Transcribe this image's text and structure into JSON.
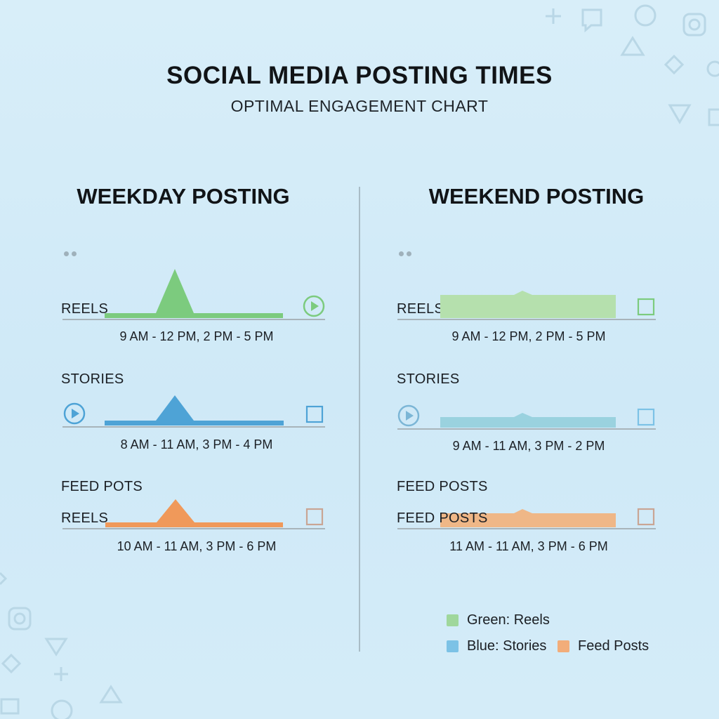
{
  "header": {
    "title": "SOCIAL MEDIA POSTING TIMES",
    "subtitle": "OPTIMAL ENGAGEMENT CHART"
  },
  "colors": {
    "reels": "#7ccb7e",
    "reels_light": "#b5e0ad",
    "stories": "#4ea3d6",
    "stories_light": "#9ad2df",
    "feed": "#f0995a",
    "feed_light": "#efb787",
    "baseline": "#a8b4ba",
    "icon": "#9fb1bb"
  },
  "chart_data": [
    {
      "type": "area",
      "title": "WEEKDAY POSTING",
      "rows": [
        {
          "key": "reels",
          "labels": [
            "REELS"
          ],
          "time": "9 AM - 12 PM, 2 PM - 5 PM",
          "shape": "peak",
          "end_icon": "play-circle-icon",
          "start_icon": ""
        },
        {
          "key": "stories",
          "labels": [
            "STORIES"
          ],
          "time": "8 AM - 11 AM, 3 PM - 4 PM",
          "shape": "peak",
          "end_icon": "square-icon",
          "start_icon": "play-circle-icon"
        },
        {
          "key": "feed",
          "labels": [
            "FEED POTS",
            "REELS"
          ],
          "time": "10 AM - 11 AM, 3 PM - 6 PM",
          "shape": "peak",
          "end_icon": "square-icon",
          "start_icon": ""
        }
      ]
    },
    {
      "type": "area",
      "title": "WEEKEND POSTING",
      "rows": [
        {
          "key": "reels",
          "labels": [
            "REELS"
          ],
          "time": "9 AM - 12 PM, 2 PM - 5 PM",
          "shape": "plateau",
          "end_icon": "square-icon",
          "start_icon": ""
        },
        {
          "key": "stories",
          "labels": [
            "STORIES"
          ],
          "time": "9 AM - 11 AM, 3 PM - 2 PM",
          "shape": "plateau",
          "end_icon": "square-icon",
          "start_icon": "play-circle-icon"
        },
        {
          "key": "feed",
          "labels": [
            "FEED POSTS",
            "FEED POSTS"
          ],
          "time": "11 AM - 11 AM, 3 PM - 6 PM",
          "shape": "plateau",
          "end_icon": "square-icon",
          "start_icon": ""
        }
      ]
    }
  ],
  "legend": {
    "reels": "Green: Reels",
    "stories": "Blue: Stories",
    "feed": "Feed Posts"
  }
}
